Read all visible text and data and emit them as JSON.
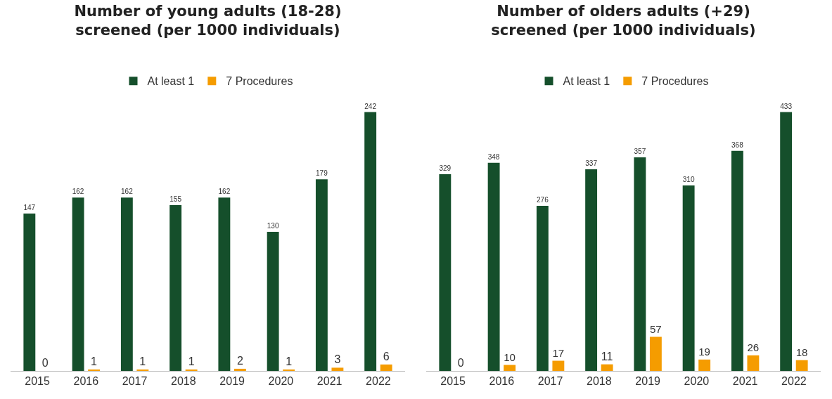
{
  "chart_data": [
    {
      "type": "bar",
      "title": "Number of young adults (18-28)\nscreened (per 1000 individuals)",
      "categories": [
        "2015",
        "2016",
        "2017",
        "2018",
        "2019",
        "2020",
        "2021",
        "2022"
      ],
      "series": [
        {
          "name": "At least 1",
          "color": "#154f2b",
          "values": [
            147,
            162,
            162,
            155,
            162,
            130,
            179,
            242
          ]
        },
        {
          "name": "7 Procedures",
          "color": "#f59c00",
          "values": [
            0,
            1,
            1,
            1,
            2,
            1,
            3,
            6
          ]
        }
      ],
      "data_labels": true,
      "legend": "top",
      "grid": false,
      "tick_labels": "x"
    },
    {
      "type": "bar",
      "title": "Number of olders adults (+29)\nscreened (per 1000 individuals)",
      "categories": [
        "2015",
        "2016",
        "2017",
        "2018",
        "2019",
        "2020",
        "2021",
        "2022"
      ],
      "series": [
        {
          "name": "At least 1",
          "color": "#154f2b",
          "values": [
            329,
            348,
            276,
            337,
            357,
            310,
            368,
            433
          ]
        },
        {
          "name": "7 Procedures",
          "color": "#f59c00",
          "values": [
            0,
            10,
            17,
            11,
            57,
            19,
            26,
            18
          ]
        }
      ],
      "data_labels": true,
      "legend": "top",
      "grid": false,
      "tick_labels": "x"
    }
  ]
}
